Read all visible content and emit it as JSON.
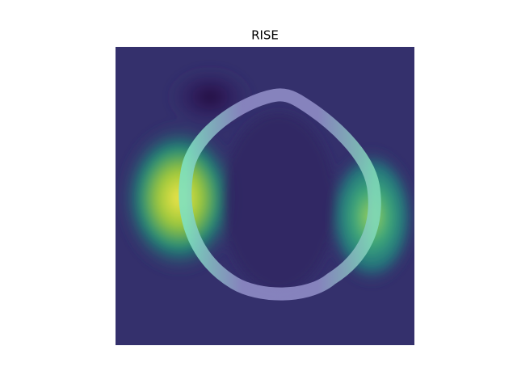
{
  "chart_data": {
    "type": "image",
    "title": "RISE"
  }
}
